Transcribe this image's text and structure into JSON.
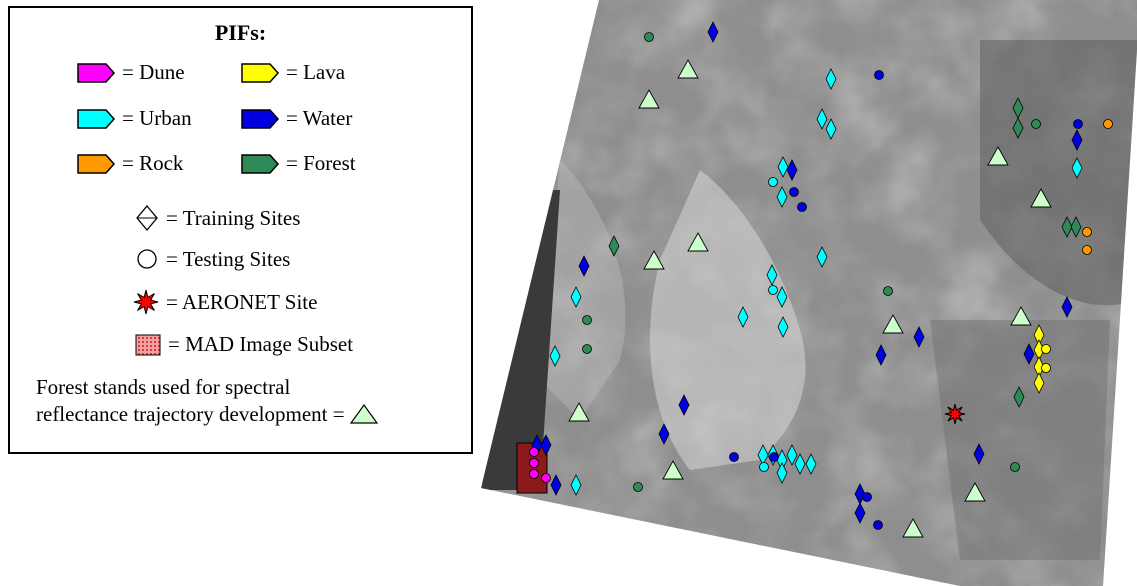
{
  "legend": {
    "title": "PIFs:",
    "classes": [
      {
        "label": "= Dune",
        "color": "#ff00ff",
        "icon": "pentagon-arrow-icon"
      },
      {
        "label": "= Lava",
        "color": "#ffff00",
        "icon": "pentagon-arrow-icon"
      },
      {
        "label": "= Urban",
        "color": "#00ffff",
        "icon": "pentagon-arrow-icon"
      },
      {
        "label": "= Water",
        "color": "#0000e0",
        "icon": "pentagon-arrow-icon"
      },
      {
        "label": "= Rock",
        "color": "#ff9900",
        "icon": "pentagon-arrow-icon"
      },
      {
        "label": "= Forest",
        "color": "#2e8b57",
        "icon": "pentagon-arrow-icon"
      }
    ],
    "training": "= Training Sites",
    "testing": "= Testing Sites",
    "aeronet": "= AERONET Site",
    "mad": "= MAD Image Subset",
    "note_line1": "Forest stands used for spectral",
    "note_line2": "reflectance trajectory development =",
    "stand_color": "#ccffcc",
    "aeronet_color": "#ff0000",
    "mad_color": "#8b1a1a"
  }
}
